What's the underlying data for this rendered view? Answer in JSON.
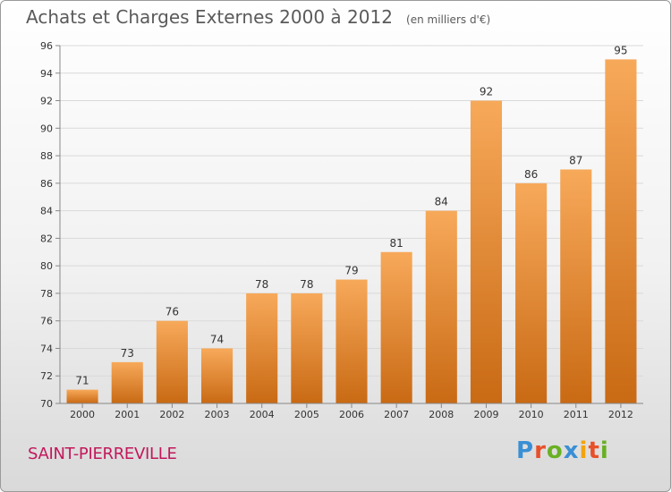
{
  "header": {
    "title": "Achats et Charges Externes 2000 à 2012",
    "subtitle": "(en milliers d'€)"
  },
  "footer": {
    "location": "SAINT-PIERREVILLE",
    "brand": "Proxiti",
    "brand_colors": [
      "#3a8fd4",
      "#e8502a",
      "#6ab023",
      "#3a8fd4",
      "#f2a30f",
      "#e8502a",
      "#6ab023"
    ]
  },
  "colors": {
    "bar_top": "#f7a95a",
    "bar_bottom": "#c96a14",
    "grid": "#d9d9d9",
    "axis": "#888888",
    "text": "#333333"
  },
  "chart_data": {
    "type": "bar",
    "categories": [
      "2000",
      "2001",
      "2002",
      "2003",
      "2004",
      "2005",
      "2006",
      "2007",
      "2008",
      "2009",
      "2010",
      "2011",
      "2012"
    ],
    "values": [
      71,
      73,
      76,
      74,
      78,
      78,
      79,
      81,
      84,
      92,
      86,
      87,
      95
    ],
    "data_labels": [
      "71",
      "73",
      "76",
      "74",
      "78",
      "78",
      "79",
      "81",
      "84",
      "92",
      "86",
      "87",
      "95"
    ],
    "yticks": [
      "70",
      "72",
      "74",
      "76",
      "78",
      "80",
      "82",
      "84",
      "86",
      "88",
      "90",
      "92",
      "94",
      "96"
    ],
    "ylim": [
      70,
      96
    ],
    "grid": true,
    "legend": "none"
  }
}
